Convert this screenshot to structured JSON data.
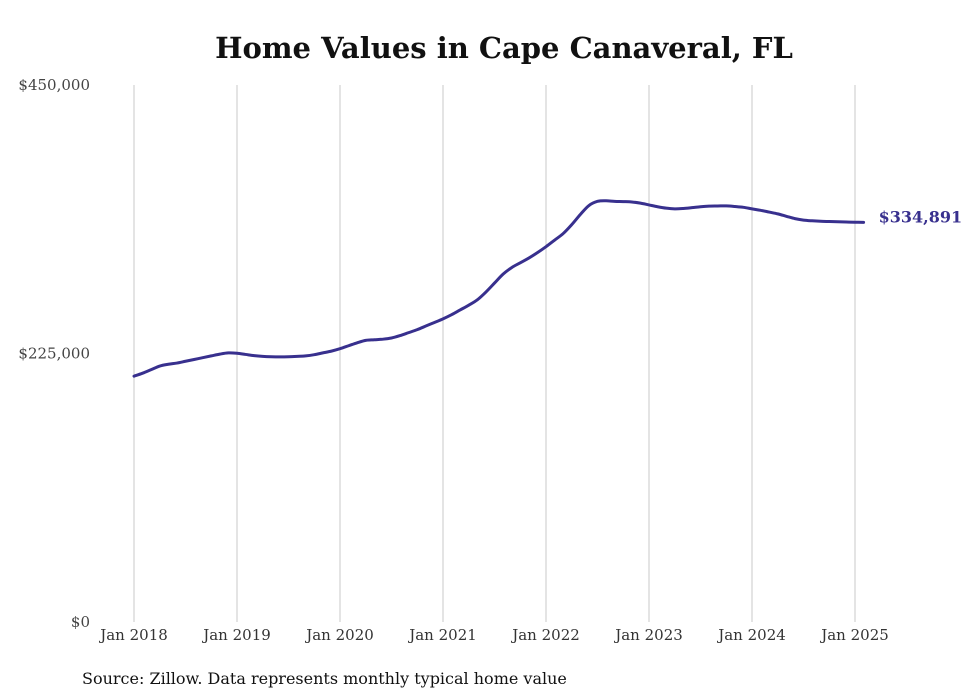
{
  "chart_data": {
    "type": "line",
    "title": "Home Values in Cape Canaveral, FL",
    "source": "Source: Zillow. Data represents monthly typical home value",
    "end_label": "$334,891",
    "x_ticks": [
      "Jan 2018",
      "Jan 2019",
      "Jan 2020",
      "Jan 2021",
      "Jan 2022",
      "Jan 2023",
      "Jan 2024",
      "Jan 2025"
    ],
    "y_ticks": [
      {
        "value": 0,
        "label": "$0"
      },
      {
        "value": 225000,
        "label": "$225,000"
      },
      {
        "value": 450000,
        "label": "$450,000"
      }
    ],
    "ylim": [
      0,
      450000
    ],
    "xlim": [
      "2018-01",
      "2025-03"
    ],
    "grid": "vertical",
    "line_color": "#38308e",
    "series": [
      {
        "points": [
          [
            "2018-01",
            206000
          ],
          [
            "2018-02",
            208500
          ],
          [
            "2018-03",
            211500
          ],
          [
            "2018-04",
            214500
          ],
          [
            "2018-05",
            216000
          ],
          [
            "2018-06",
            217000
          ],
          [
            "2018-07",
            218500
          ],
          [
            "2018-08",
            220000
          ],
          [
            "2018-09",
            221500
          ],
          [
            "2018-10",
            223000
          ],
          [
            "2018-11",
            224500
          ],
          [
            "2018-12",
            225500
          ],
          [
            "2019-01",
            225200
          ],
          [
            "2019-02",
            224200
          ],
          [
            "2019-03",
            223200
          ],
          [
            "2019-04",
            222600
          ],
          [
            "2019-05",
            222300
          ],
          [
            "2019-06",
            222200
          ],
          [
            "2019-07",
            222300
          ],
          [
            "2019-08",
            222600
          ],
          [
            "2019-09",
            223000
          ],
          [
            "2019-10",
            224000
          ],
          [
            "2019-11",
            225500
          ],
          [
            "2019-12",
            227000
          ],
          [
            "2020-01",
            229000
          ],
          [
            "2020-02",
            231500
          ],
          [
            "2020-03",
            234000
          ],
          [
            "2020-04",
            236000
          ],
          [
            "2020-05",
            236500
          ],
          [
            "2020-06",
            237000
          ],
          [
            "2020-07",
            238000
          ],
          [
            "2020-08",
            240000
          ],
          [
            "2020-09",
            242500
          ],
          [
            "2020-10",
            245000
          ],
          [
            "2020-11",
            248000
          ],
          [
            "2020-12",
            251000
          ],
          [
            "2021-01",
            254000
          ],
          [
            "2021-02",
            257500
          ],
          [
            "2021-03",
            261500
          ],
          [
            "2021-04",
            265500
          ],
          [
            "2021-05",
            270000
          ],
          [
            "2021-06",
            276500
          ],
          [
            "2021-07",
            284000
          ],
          [
            "2021-08",
            291500
          ],
          [
            "2021-09",
            297000
          ],
          [
            "2021-10",
            301000
          ],
          [
            "2021-11",
            305000
          ],
          [
            "2021-12",
            309500
          ],
          [
            "2022-01",
            314500
          ],
          [
            "2022-02",
            320000
          ],
          [
            "2022-03",
            325500
          ],
          [
            "2022-04",
            333000
          ],
          [
            "2022-05",
            341500
          ],
          [
            "2022-06",
            349000
          ],
          [
            "2022-07",
            352500
          ],
          [
            "2022-08",
            353000
          ],
          [
            "2022-09",
            352500
          ],
          [
            "2022-10",
            352300
          ],
          [
            "2022-11",
            352000
          ],
          [
            "2022-12",
            351000
          ],
          [
            "2023-01",
            349500
          ],
          [
            "2023-02",
            348000
          ],
          [
            "2023-03",
            346800
          ],
          [
            "2023-04",
            346200
          ],
          [
            "2023-05",
            346500
          ],
          [
            "2023-06",
            347200
          ],
          [
            "2023-07",
            348000
          ],
          [
            "2023-08",
            348500
          ],
          [
            "2023-09",
            348600
          ],
          [
            "2023-10",
            348700
          ],
          [
            "2023-11",
            348200
          ],
          [
            "2023-12",
            347500
          ],
          [
            "2024-01",
            346200
          ],
          [
            "2024-02",
            345000
          ],
          [
            "2024-03",
            343500
          ],
          [
            "2024-04",
            342000
          ],
          [
            "2024-05",
            340000
          ],
          [
            "2024-06",
            338000
          ],
          [
            "2024-07",
            336800
          ],
          [
            "2024-08",
            336200
          ],
          [
            "2024-09",
            335800
          ],
          [
            "2024-10",
            335600
          ],
          [
            "2024-11",
            335400
          ],
          [
            "2024-12",
            335200
          ],
          [
            "2025-01",
            335000
          ],
          [
            "2025-02",
            334891
          ]
        ]
      }
    ]
  }
}
